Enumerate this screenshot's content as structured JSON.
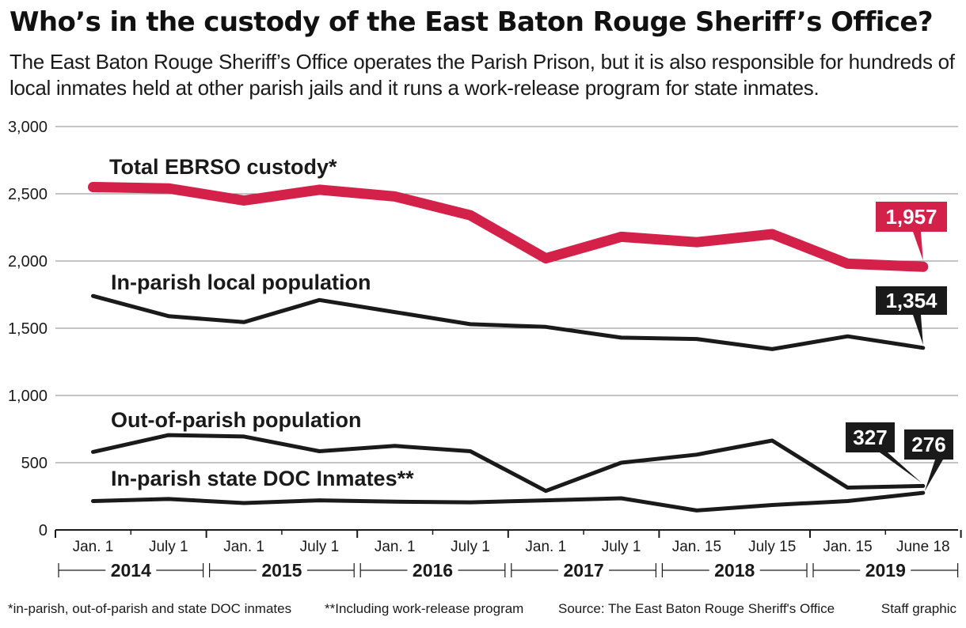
{
  "header": {
    "title": "Who’s in the custody of the East Baton Rouge Sheriff’s Office?",
    "subtitle": "The East Baton Rouge Sheriff’s Office operates the Parish Prison, but it is also responsible for hundreds of local inmates held at other parish jails and it runs a work-release program for state inmates."
  },
  "chart_data": {
    "type": "line",
    "title": "Who’s in the custody of the East Baton Rouge Sheriff’s Office?",
    "xlabel": "",
    "ylabel": "",
    "ylim": [
      0,
      3000
    ],
    "yticks": [
      0,
      500,
      1000,
      1500,
      2000,
      2500,
      3000
    ],
    "ytick_labels": [
      "0",
      "500",
      "1,000",
      "1,500",
      "2,000",
      "2,500",
      "3,000"
    ],
    "categories": [
      "Jan. 1",
      "July 1",
      "Jan. 1",
      "July 1",
      "Jan. 1",
      "July 1",
      "Jan. 1",
      "July 1",
      "Jan. 15",
      "July 15",
      "Jan. 15",
      "June 18"
    ],
    "years": [
      "2014",
      "2015",
      "2016",
      "2017",
      "2018",
      "2019"
    ],
    "grid": true,
    "series": [
      {
        "name": "Total EBRSO custody*",
        "color": "#d4214a",
        "values": [
          2550,
          2540,
          2450,
          2530,
          2480,
          2340,
          2020,
          2180,
          2140,
          2200,
          1980,
          1957
        ],
        "end_label": "1,957"
      },
      {
        "name": "In-parish local population",
        "color": "#1a1a1a",
        "values": [
          1740,
          1590,
          1545,
          1710,
          1620,
          1530,
          1510,
          1430,
          1420,
          1345,
          1440,
          1354
        ],
        "end_label": "1,354"
      },
      {
        "name": "Out-of-parish population",
        "color": "#1a1a1a",
        "values": [
          580,
          705,
          695,
          585,
          625,
          585,
          290,
          500,
          560,
          665,
          315,
          327
        ],
        "end_label": "327"
      },
      {
        "name": "In-parish state DOC Inmates**",
        "color": "#1a1a1a",
        "values": [
          215,
          230,
          200,
          220,
          210,
          205,
          220,
          235,
          145,
          185,
          215,
          276
        ],
        "end_label": "276"
      }
    ]
  },
  "footer": {
    "note1": "*in-parish, out-of-parish and state DOC inmates",
    "note2": "**Including work-release program",
    "source": "Source: The East Baton Rouge Sheriff's Office",
    "credit": "Staff graphic"
  }
}
